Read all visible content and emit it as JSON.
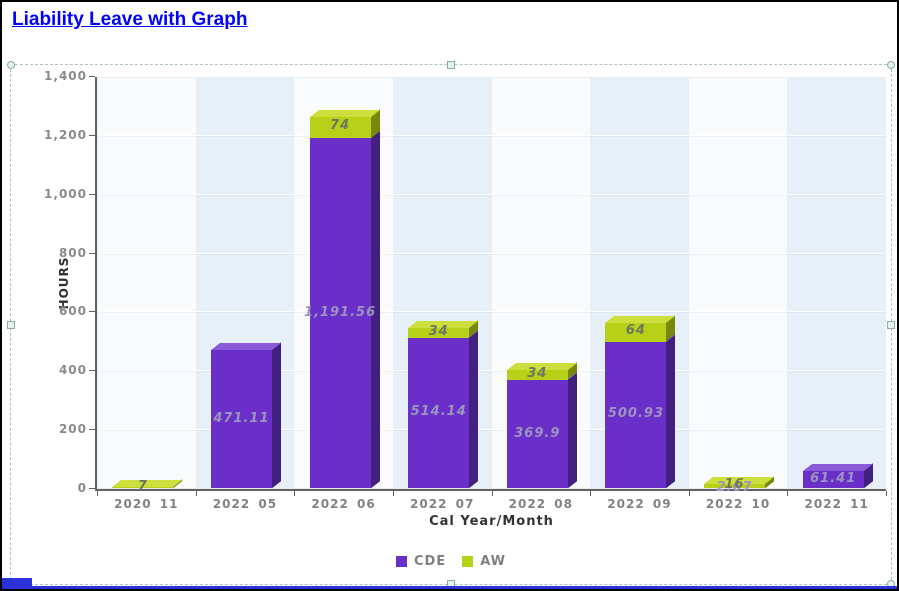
{
  "page": {
    "title": "Liability Leave with Graph",
    "title_color": "#0202fc"
  },
  "chart_data": {
    "type": "bar",
    "stacked": true,
    "three_d": true,
    "xlabel": "Cal Year/Month",
    "ylabel": "HOURS",
    "ylim": [
      0,
      1400
    ],
    "ytick_step": 200,
    "yticks": [
      "0",
      "200",
      "400",
      "600",
      "800",
      "1,000",
      "1,200",
      "1,400"
    ],
    "categories": [
      "2020 11",
      "2022 05",
      "2022 06",
      "2022 07",
      "2022 08",
      "2022 09",
      "2022 10",
      "2022 11"
    ],
    "series": [
      {
        "name": "CDE",
        "color": "#6a2fc9",
        "side_color": "#41207f",
        "top_color": "#8a5ad8",
        "label_color": "#9c94bf",
        "values": [
          0,
          471.11,
          1191.56,
          514.14,
          369.9,
          500.93,
          2.67,
          61.41
        ],
        "labels": [
          "",
          "471.11",
          "1,191.56",
          "514.14",
          "369.9",
          "500.93",
          "2.67",
          "61.41"
        ]
      },
      {
        "name": "AW",
        "color": "#b6d117",
        "side_color": "#77880a",
        "top_color": "#ccdf3c",
        "label_color": "#6e7560",
        "values": [
          7,
          0,
          74,
          34,
          34,
          64,
          16,
          0
        ],
        "labels": [
          "7",
          "",
          "74",
          "34",
          "34",
          "64",
          "16",
          ""
        ]
      }
    ],
    "legend": [
      "CDE",
      "AW"
    ],
    "legend_position": "bottom",
    "grid": true
  }
}
